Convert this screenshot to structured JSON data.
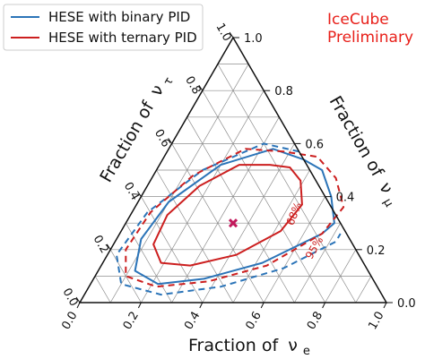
{
  "chart_data": {
    "type": "ternary",
    "axes": {
      "bottom": {
        "label": "Fraction of",
        "symbol": "ν",
        "sub": "e",
        "ticks": [
          "0.0",
          "0.2",
          "0.4",
          "0.6",
          "0.8",
          "1.0"
        ]
      },
      "right": {
        "label": "Fraction of",
        "symbol": "ν",
        "sub": "μ",
        "ticks": [
          "0.0",
          "0.2",
          "0.4",
          "0.6",
          "0.8",
          "1.0"
        ]
      },
      "left": {
        "label": "Fraction of",
        "symbol": "ν",
        "sub": "τ",
        "ticks": [
          "0.0",
          "0.2",
          "0.4",
          "0.6",
          "0.8",
          "1.0"
        ]
      }
    },
    "grid": true,
    "legend": {
      "placement": "top-left"
    },
    "watermark": {
      "line1": "IceCube",
      "line2": "Preliminary",
      "color": "#e8201a"
    },
    "best_fit": {
      "nu_e": 0.35,
      "nu_mu": 0.35,
      "nu_tau": 0.3,
      "color": "#c2185b"
    },
    "series": [
      {
        "name": "HESE with binary PID",
        "color": "#2b74b8",
        "contours": [
          {
            "level": "68%",
            "style": "solid",
            "points": [
              [
                0.46,
                0.54
              ],
              [
                0.34,
                0.58
              ],
              [
                0.2,
                0.52
              ],
              [
                0.1,
                0.38
              ],
              [
                0.08,
                0.24
              ],
              [
                0.12,
                0.12
              ],
              [
                0.22,
                0.07
              ],
              [
                0.36,
                0.09
              ],
              [
                0.52,
                0.15
              ],
              [
                0.66,
                0.26
              ],
              [
                0.68,
                0.3
              ],
              [
                0.62,
                0.4
              ],
              [
                0.54,
                0.5
              ]
            ]
          },
          {
            "level": "95%",
            "style": "dashed",
            "points": [
              [
                0.43,
                0.57
              ],
              [
                0.3,
                0.6
              ],
              [
                0.15,
                0.5
              ],
              [
                0.05,
                0.34
              ],
              [
                0.03,
                0.18
              ],
              [
                0.1,
                0.07
              ],
              [
                0.25,
                0.03
              ],
              [
                0.43,
                0.06
              ],
              [
                0.6,
                0.13
              ],
              [
                0.72,
                0.23
              ],
              [
                0.72,
                0.26
              ]
            ]
          }
        ]
      },
      {
        "name": "HESE with ternary PID",
        "color": "#cc1f1f",
        "contours": [
          {
            "level": "68%",
            "style": "solid",
            "points": [
              [
                0.36,
                0.52
              ],
              [
                0.26,
                0.52
              ],
              [
                0.17,
                0.44
              ],
              [
                0.12,
                0.33
              ],
              [
                0.13,
                0.22
              ],
              [
                0.19,
                0.15
              ],
              [
                0.29,
                0.14
              ],
              [
                0.42,
                0.18
              ],
              [
                0.52,
                0.27
              ],
              [
                0.54,
                0.37
              ],
              [
                0.49,
                0.46
              ],
              [
                0.43,
                0.51
              ]
            ]
          },
          {
            "level": "95%",
            "style": "dashed",
            "points": [
              [
                0.38,
                0.57
              ],
              [
                0.25,
                0.58
              ],
              [
                0.13,
                0.48
              ],
              [
                0.06,
                0.34
              ],
              [
                0.05,
                0.2
              ],
              [
                0.1,
                0.1
              ],
              [
                0.22,
                0.06
              ],
              [
                0.38,
                0.08
              ],
              [
                0.54,
                0.14
              ],
              [
                0.66,
                0.26
              ],
              [
                0.68,
                0.36
              ],
              [
                0.6,
                0.47
              ],
              [
                0.5,
                0.55
              ]
            ]
          }
        ]
      }
    ],
    "contour_labels": [
      "68%",
      "95%"
    ]
  }
}
